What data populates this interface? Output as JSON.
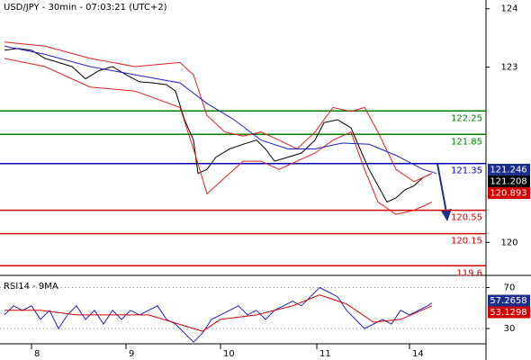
{
  "chart_data": [
    {
      "type": "line",
      "title": "USD/JPY - 30min - 07:03:21 (UTC+2)",
      "xlim": [
        0,
        108
      ],
      "ylim": [
        119.45,
        124.15
      ],
      "yticks": [
        124,
        123,
        120
      ],
      "series": [
        {
          "color": "#000000",
          "x": [
            1,
            4,
            7,
            10,
            13,
            16,
            19,
            22,
            25,
            28,
            31,
            34,
            37,
            39,
            41,
            43,
            44,
            46,
            48,
            51,
            54,
            57,
            59,
            61,
            64,
            67,
            70,
            72,
            75,
            78,
            80,
            82,
            84,
            86,
            88,
            90,
            92,
            94,
            96
          ],
          "values": [
            123.29,
            123.32,
            123.29,
            123.15,
            123.08,
            123.01,
            122.8,
            122.94,
            123.01,
            122.87,
            122.75,
            122.73,
            122.7,
            122.59,
            122.1,
            121.75,
            121.18,
            121.25,
            121.46,
            121.6,
            121.68,
            121.75,
            121.6,
            121.39,
            121.46,
            121.53,
            121.75,
            122.05,
            122.1,
            121.96,
            121.6,
            121.25,
            120.97,
            120.69,
            120.76,
            120.9,
            120.97,
            121.11,
            121.18
          ]
        },
        {
          "color": "#e02020",
          "x": [
            1,
            10,
            20,
            30,
            40,
            43,
            46,
            50,
            54,
            58,
            62,
            66,
            70,
            74,
            78,
            81,
            84,
            88,
            92,
            96
          ],
          "values": [
            123.43,
            123.36,
            123.15,
            123.01,
            123.08,
            122.87,
            122.17,
            121.89,
            121.82,
            121.89,
            121.75,
            121.6,
            121.89,
            122.31,
            122.24,
            122.31,
            121.89,
            121.25,
            121.04,
            121.18
          ]
        },
        {
          "color": "#e02020",
          "x": [
            1,
            10,
            20,
            30,
            40,
            43,
            46,
            50,
            54,
            58,
            62,
            66,
            70,
            74,
            78,
            81,
            84,
            88,
            92,
            96
          ],
          "values": [
            123.15,
            123.01,
            122.66,
            122.59,
            122.31,
            121.6,
            120.83,
            121.11,
            121.39,
            121.39,
            121.25,
            121.39,
            121.53,
            121.75,
            121.89,
            121.25,
            120.69,
            120.48,
            120.55,
            120.69
          ]
        },
        {
          "color": "#2020c0",
          "x": [
            1,
            10,
            20,
            30,
            40,
            46,
            52,
            58,
            64,
            70,
            76,
            82,
            88,
            94,
            97
          ],
          "values": [
            123.36,
            123.22,
            123.01,
            122.87,
            122.73,
            122.38,
            122.1,
            121.75,
            121.6,
            121.6,
            121.7,
            121.68,
            121.49,
            121.25,
            121.18
          ]
        }
      ],
      "levels": {
        "values": [
          122.25,
          121.85,
          121.35,
          120.55,
          120.15,
          119.6
        ],
        "colors": [
          "#008000",
          "#008000",
          "#0000c0",
          "#d00000",
          "#d00000",
          "#d00000"
        ]
      },
      "price_labels": {
        "values": [
          121.246,
          121.208,
          120.893
        ],
        "colors": [
          "#1c2f8a",
          "#000000",
          "#d00000"
        ]
      }
    },
    {
      "type": "line",
      "title": "RSI14 - 9MA",
      "xlim": [
        0,
        108
      ],
      "ylim": [
        16,
        81
      ],
      "yticks": [
        70,
        30
      ],
      "grid": true,
      "xticks": [
        {
          "value": 7,
          "label": "8"
        },
        {
          "value": 28,
          "label": "9"
        },
        {
          "value": 49,
          "label": "10"
        },
        {
          "value": 70.4,
          "label": "11"
        },
        {
          "value": 91,
          "label": "14"
        }
      ],
      "series": [
        {
          "color": "#2020c0",
          "x": [
            1,
            3,
            5,
            7,
            9,
            11,
            13,
            15,
            17,
            19,
            21,
            23,
            25,
            27,
            29,
            31,
            33,
            35,
            37,
            39,
            41,
            43,
            45,
            47,
            49,
            51,
            53,
            55,
            57,
            59,
            61,
            63,
            65,
            67,
            69,
            71,
            73,
            75,
            77,
            79,
            81,
            83,
            85,
            87,
            89,
            91,
            93,
            95,
            96
          ],
          "values": [
            43.3,
            52.2,
            47.8,
            52.2,
            38.9,
            47.8,
            30,
            43.3,
            52.2,
            38.9,
            47.8,
            34.4,
            47.8,
            38.9,
            47.8,
            43.3,
            47.8,
            52.2,
            38.9,
            34.4,
            25.6,
            16.7,
            25.6,
            38.9,
            43.3,
            47.8,
            52.2,
            43.3,
            47.8,
            38.9,
            47.8,
            52.2,
            56.7,
            52.2,
            61.1,
            70,
            65.6,
            61.1,
            47.8,
            38.9,
            30,
            34.4,
            38.9,
            34.4,
            47.8,
            43.3,
            47.8,
            52.2,
            54.9
          ]
        },
        {
          "color": "#d00000",
          "x": [
            1,
            9,
            17,
            25,
            33,
            41,
            45,
            49,
            57,
            65,
            71,
            77,
            83,
            89,
            96
          ],
          "values": [
            47.8,
            47.8,
            43.3,
            43.3,
            43.3,
            32.7,
            27.3,
            38.9,
            43.3,
            52.2,
            62.9,
            54,
            36.2,
            38.9,
            52.2
          ]
        }
      ],
      "price_labels": {
        "values": [
          57.2658,
          53.1298
        ],
        "colors": [
          "#1c2f8a",
          "#d00000"
        ]
      }
    }
  ]
}
